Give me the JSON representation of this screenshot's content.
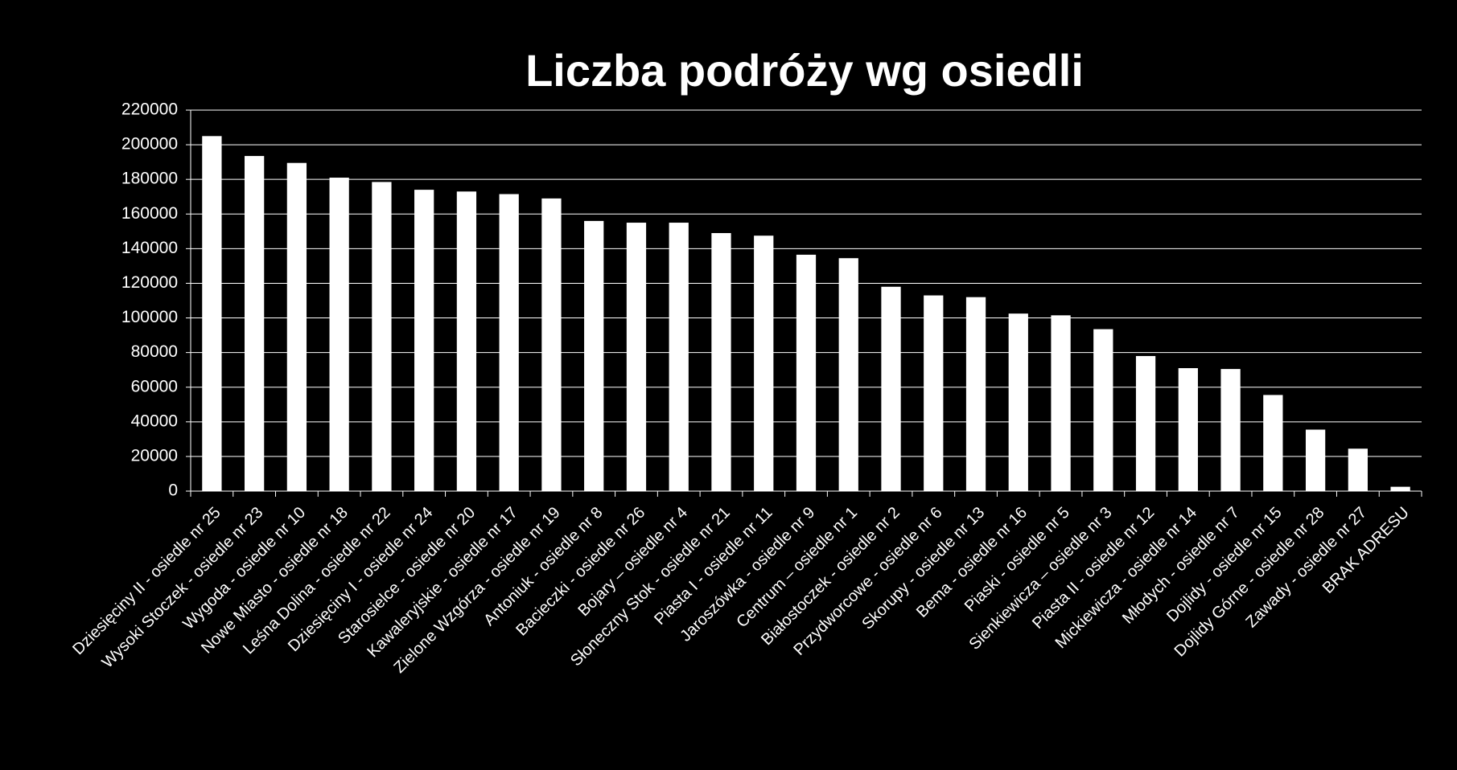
{
  "chart_data": {
    "type": "bar",
    "title": "Liczba podróży wg osiedli",
    "categories": [
      "Dziesięciny II - osiedle nr 25",
      "Wysoki Stoczek - osiedle nr 23",
      "Wygoda - osiedle nr 10",
      "Nowe Miasto - osiedle nr 18",
      "Leśna Dolina - osiedle nr 22",
      "Dziesięciny I - osiedle nr 24",
      "Starosielce - osiedle nr 20",
      "Kawaleryjskie - osiedle nr 17",
      "Zielone Wzgórza - osiedle nr 19",
      "Antoniuk - osiedle nr 8",
      "Bacieczki - osiedle nr 26",
      "Bojary – osiedle nr 4",
      "Słoneczny Stok - osiedle nr 21",
      "Piasta I - osiedle nr 11",
      "Jaroszówka - osiedle nr 9",
      "Centrum – osiedle nr 1",
      "Białostoczek - osiedle nr 2",
      "Przydworcowe - osiedle nr 6",
      "Skorupy - osiedle nr 13",
      "Bema - osiedle nr 16",
      "Piaski - osiedle nr 5",
      "Sienkiewicza – osiedle nr 3",
      "Piasta II - osiedle nr 12",
      "Mickiewicza - osiedle nr 14",
      "Młodych - osiedle nr 7",
      "Dojlidy - osiedle nr 15",
      "Dojlidy Górne - osiedle nr 28",
      "Zawady - osiedle nr 27",
      "BRAK ADRESU"
    ],
    "values": [
      205000,
      193500,
      189500,
      181000,
      178500,
      174000,
      173000,
      171500,
      169000,
      156000,
      155000,
      155000,
      149000,
      147500,
      136500,
      134500,
      118000,
      113000,
      112000,
      102500,
      101500,
      93500,
      78000,
      71000,
      70500,
      55500,
      35500,
      24500,
      2500
    ],
    "color": "#ffffff",
    "ylim": [
      0,
      220000
    ],
    "yticks": [
      0,
      20000,
      40000,
      60000,
      80000,
      100000,
      120000,
      140000,
      160000,
      180000,
      200000,
      220000
    ],
    "grid": true
  }
}
